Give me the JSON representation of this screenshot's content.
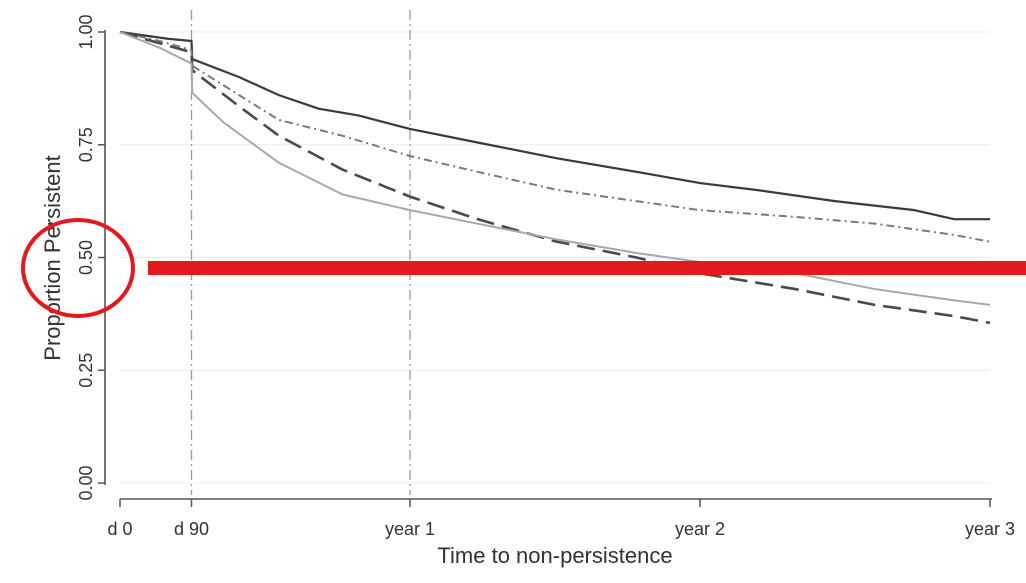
{
  "chart_data": {
    "type": "line",
    "title": "",
    "xlabel": "Time to non-persistence",
    "ylabel": "Proportion Persistent",
    "xlim": [
      0,
      1095
    ],
    "ylim": [
      0,
      1
    ],
    "x_ticks": [
      {
        "value": 0,
        "label": "d 0"
      },
      {
        "value": 90,
        "label": "d 90"
      },
      {
        "value": 365,
        "label": "year 1"
      },
      {
        "value": 730,
        "label": "year 2"
      },
      {
        "value": 1095,
        "label": "year 3"
      }
    ],
    "y_ticks": [
      {
        "value": 0,
        "label": "0.00"
      },
      {
        "value": 0.25,
        "label": "0.25"
      },
      {
        "value": 0.5,
        "label": "0.50"
      },
      {
        "value": 0.75,
        "label": "0.75"
      },
      {
        "value": 1,
        "label": "1.00"
      }
    ],
    "reference_lines_x": [
      90,
      365
    ],
    "grid": true,
    "series": [
      {
        "style": "solid-dark",
        "color": "#3a3a3a",
        "points": [
          [
            0,
            1.0
          ],
          [
            60,
            0.985
          ],
          [
            90,
            0.98
          ],
          [
            91,
            0.94
          ],
          [
            150,
            0.9
          ],
          [
            200,
            0.86
          ],
          [
            250,
            0.83
          ],
          [
            300,
            0.815
          ],
          [
            365,
            0.785
          ],
          [
            450,
            0.755
          ],
          [
            550,
            0.72
          ],
          [
            650,
            0.69
          ],
          [
            730,
            0.665
          ],
          [
            800,
            0.65
          ],
          [
            900,
            0.625
          ],
          [
            1000,
            0.605
          ],
          [
            1050,
            0.585
          ],
          [
            1095,
            0.585
          ]
        ]
      },
      {
        "style": "dash-dot",
        "color": "#7a7a7a",
        "points": [
          [
            0,
            1.0
          ],
          [
            50,
            0.98
          ],
          [
            90,
            0.96
          ],
          [
            91,
            0.925
          ],
          [
            150,
            0.86
          ],
          [
            200,
            0.805
          ],
          [
            280,
            0.77
          ],
          [
            365,
            0.725
          ],
          [
            450,
            0.69
          ],
          [
            550,
            0.65
          ],
          [
            650,
            0.625
          ],
          [
            730,
            0.605
          ],
          [
            850,
            0.59
          ],
          [
            950,
            0.575
          ],
          [
            1050,
            0.55
          ],
          [
            1095,
            0.535
          ]
        ]
      },
      {
        "style": "long-dash",
        "color": "#4a4a4a",
        "points": [
          [
            0,
            1.0
          ],
          [
            50,
            0.975
          ],
          [
            90,
            0.955
          ],
          [
            91,
            0.915
          ],
          [
            150,
            0.835
          ],
          [
            200,
            0.77
          ],
          [
            280,
            0.695
          ],
          [
            365,
            0.635
          ],
          [
            450,
            0.585
          ],
          [
            550,
            0.535
          ],
          [
            650,
            0.5
          ],
          [
            730,
            0.465
          ],
          [
            850,
            0.43
          ],
          [
            950,
            0.395
          ],
          [
            1050,
            0.37
          ],
          [
            1095,
            0.355
          ]
        ]
      },
      {
        "style": "solid-light",
        "color": "#a8a8a8",
        "points": [
          [
            0,
            1.0
          ],
          [
            50,
            0.965
          ],
          [
            90,
            0.93
          ],
          [
            91,
            0.865
          ],
          [
            130,
            0.8
          ],
          [
            200,
            0.71
          ],
          [
            280,
            0.64
          ],
          [
            365,
            0.605
          ],
          [
            450,
            0.575
          ],
          [
            550,
            0.54
          ],
          [
            650,
            0.51
          ],
          [
            730,
            0.49
          ],
          [
            850,
            0.465
          ],
          [
            950,
            0.43
          ],
          [
            1050,
            0.405
          ],
          [
            1095,
            0.395
          ]
        ]
      }
    ],
    "annotations": [
      {
        "type": "circle",
        "color": "#e4191c",
        "around": "y-tick 0.50"
      },
      {
        "type": "horizontal-line",
        "color": "#e4191c",
        "y": 0.5
      }
    ]
  }
}
